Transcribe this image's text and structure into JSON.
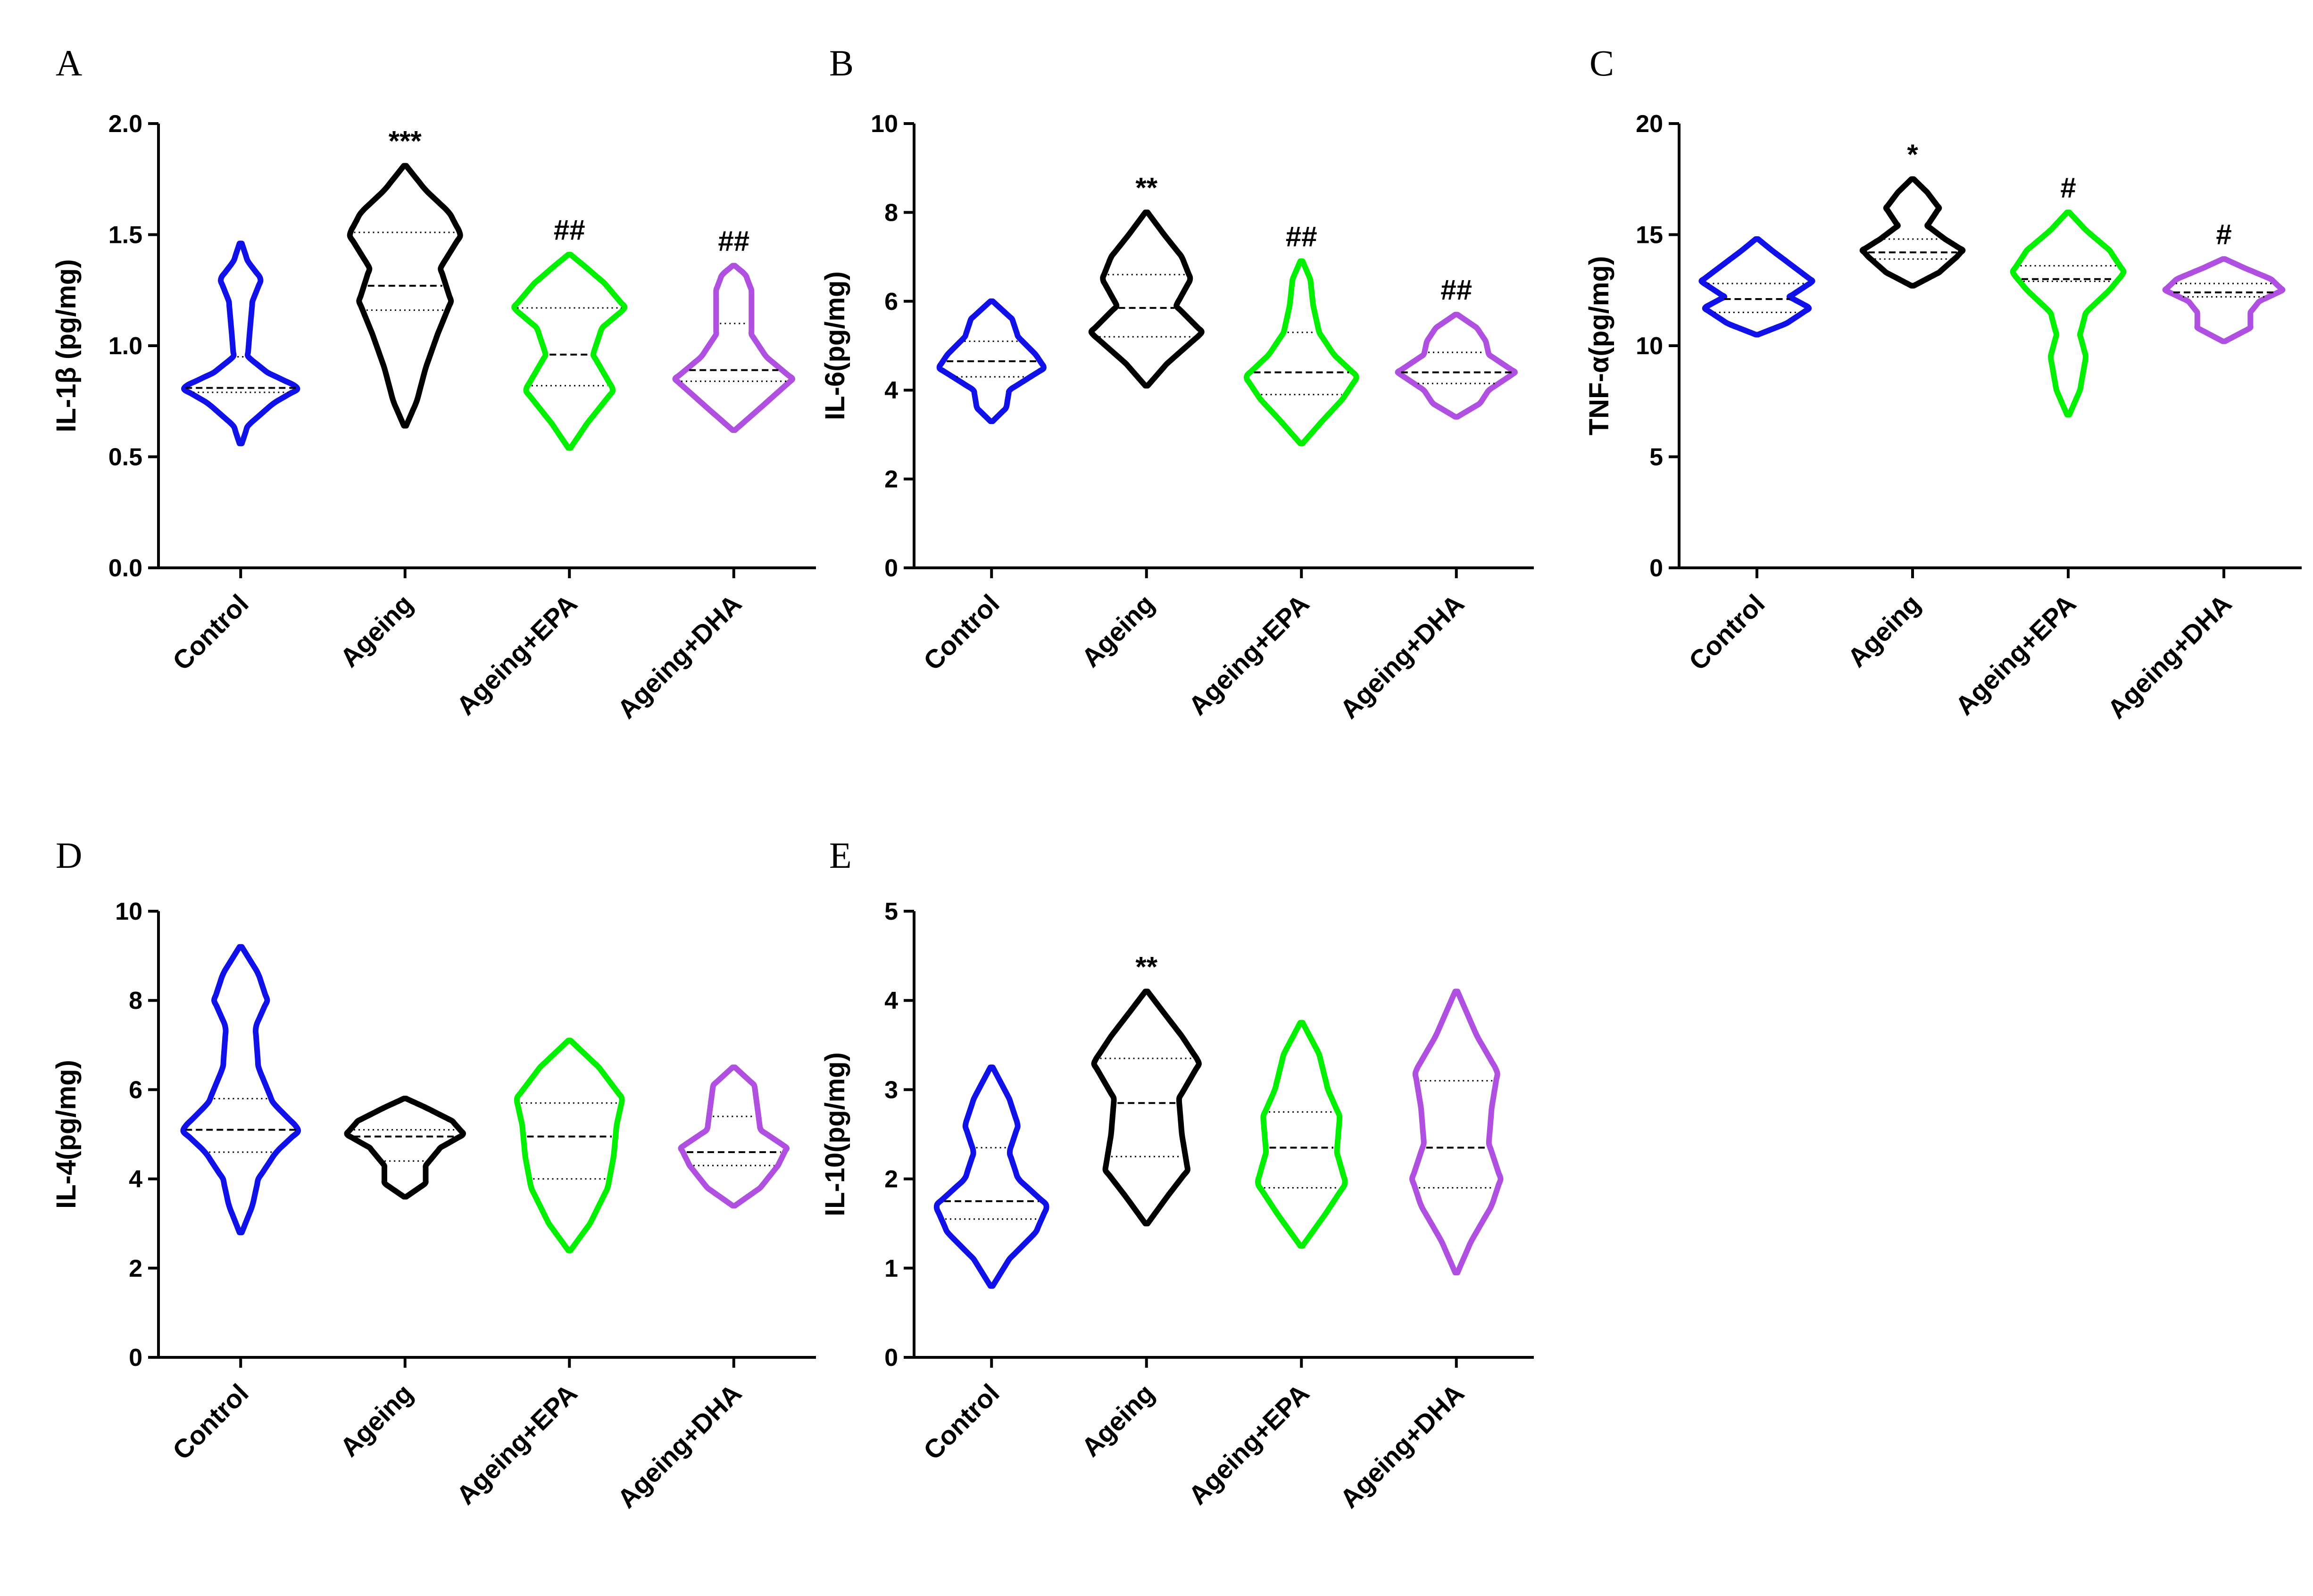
{
  "chart_data": [
    {
      "panel": "A",
      "type": "violin",
      "ylabel": "IL-1β (pg/mg)",
      "ylim": [
        0,
        2.0
      ],
      "yticks": [
        0.0,
        0.5,
        1.0,
        1.5,
        2.0
      ],
      "ytick_labels": [
        "0.0",
        "0.5",
        "1.0",
        "1.5",
        "2.0"
      ],
      "categories": [
        "Control",
        "Ageing",
        "Ageing+EPA",
        "Ageing+DHA"
      ],
      "colors": [
        "#1010E8",
        "#000000",
        "#00F000",
        "#B050E0"
      ],
      "significance": [
        "",
        "***",
        "##",
        "##"
      ],
      "violins": [
        {
          "min": 0.56,
          "max": 1.46,
          "median": 0.81,
          "q1": 0.79,
          "q3": 0.95,
          "density": [
            [
              0.56,
              0.02
            ],
            [
              0.64,
              0.12
            ],
            [
              0.74,
              0.55
            ],
            [
              0.81,
              1.0
            ],
            [
              0.88,
              0.45
            ],
            [
              0.95,
              0.12
            ],
            [
              1.05,
              0.15
            ],
            [
              1.2,
              0.2
            ],
            [
              1.3,
              0.35
            ],
            [
              1.38,
              0.12
            ],
            [
              1.46,
              0.02
            ]
          ]
        },
        {
          "min": 0.64,
          "max": 1.81,
          "median": 1.27,
          "q1": 1.16,
          "q3": 1.51,
          "density": [
            [
              0.64,
              0.02
            ],
            [
              0.75,
              0.2
            ],
            [
              0.9,
              0.35
            ],
            [
              1.05,
              0.55
            ],
            [
              1.2,
              0.78
            ],
            [
              1.35,
              0.6
            ],
            [
              1.5,
              0.95
            ],
            [
              1.6,
              0.75
            ],
            [
              1.7,
              0.35
            ],
            [
              1.81,
              0.02
            ]
          ]
        },
        {
          "min": 0.54,
          "max": 1.41,
          "median": 0.96,
          "q1": 0.82,
          "q3": 1.17,
          "density": [
            [
              0.54,
              0.02
            ],
            [
              0.65,
              0.3
            ],
            [
              0.8,
              0.75
            ],
            [
              0.96,
              0.4
            ],
            [
              1.08,
              0.55
            ],
            [
              1.17,
              0.95
            ],
            [
              1.28,
              0.6
            ],
            [
              1.36,
              0.25
            ],
            [
              1.41,
              0.02
            ]
          ]
        },
        {
          "min": 0.62,
          "max": 1.36,
          "median": 0.89,
          "q1": 0.84,
          "q3": 1.1,
          "density": [
            [
              0.62,
              0.02
            ],
            [
              0.72,
              0.45
            ],
            [
              0.85,
              1.0
            ],
            [
              0.95,
              0.55
            ],
            [
              1.05,
              0.3
            ],
            [
              1.15,
              0.3
            ],
            [
              1.25,
              0.3
            ],
            [
              1.32,
              0.2
            ],
            [
              1.36,
              0.02
            ]
          ]
        }
      ]
    },
    {
      "panel": "B",
      "type": "violin",
      "ylabel": "IL-6(pg/mg)",
      "ylim": [
        0,
        10
      ],
      "yticks": [
        0,
        2,
        4,
        6,
        8,
        10
      ],
      "ytick_labels": [
        "0",
        "2",
        "4",
        "6",
        "8",
        "10"
      ],
      "categories": [
        "Control",
        "Ageing",
        "Ageing+EPA",
        "Ageing+DHA"
      ],
      "colors": [
        "#1010E8",
        "#000000",
        "#00F000",
        "#B050E0"
      ],
      "significance": [
        "",
        "**",
        "##",
        "##"
      ],
      "violins": [
        {
          "min": 3.3,
          "max": 6.0,
          "median": 4.65,
          "q1": 4.3,
          "q3": 5.1,
          "density": [
            [
              3.3,
              0.02
            ],
            [
              3.6,
              0.25
            ],
            [
              4.0,
              0.3
            ],
            [
              4.5,
              0.9
            ],
            [
              4.8,
              0.75
            ],
            [
              5.2,
              0.45
            ],
            [
              5.6,
              0.35
            ],
            [
              6.0,
              0.02
            ]
          ]
        },
        {
          "min": 4.1,
          "max": 8.0,
          "median": 5.85,
          "q1": 5.2,
          "q3": 6.6,
          "density": [
            [
              4.1,
              0.02
            ],
            [
              4.6,
              0.35
            ],
            [
              5.3,
              0.95
            ],
            [
              5.9,
              0.5
            ],
            [
              6.5,
              0.75
            ],
            [
              7.0,
              0.6
            ],
            [
              7.5,
              0.3
            ],
            [
              8.0,
              0.02
            ]
          ]
        },
        {
          "min": 2.8,
          "max": 6.9,
          "median": 4.4,
          "q1": 3.9,
          "q3": 5.3,
          "density": [
            [
              2.8,
              0.02
            ],
            [
              3.3,
              0.35
            ],
            [
              3.8,
              0.7
            ],
            [
              4.3,
              0.95
            ],
            [
              4.8,
              0.55
            ],
            [
              5.3,
              0.3
            ],
            [
              5.9,
              0.2
            ],
            [
              6.5,
              0.15
            ],
            [
              6.9,
              0.02
            ]
          ]
        },
        {
          "min": 3.4,
          "max": 5.7,
          "median": 4.4,
          "q1": 4.15,
          "q3": 4.85,
          "density": [
            [
              3.4,
              0.02
            ],
            [
              3.7,
              0.4
            ],
            [
              4.0,
              0.55
            ],
            [
              4.4,
              1.0
            ],
            [
              4.8,
              0.55
            ],
            [
              5.1,
              0.5
            ],
            [
              5.4,
              0.35
            ],
            [
              5.7,
              0.02
            ]
          ]
        }
      ]
    },
    {
      "panel": "C",
      "type": "violin",
      "ylabel": "TNF-α(pg/mg)",
      "ylim": [
        0,
        20
      ],
      "yticks": [
        0,
        5,
        10,
        15,
        20
      ],
      "ytick_labels": [
        "0",
        "5",
        "10",
        "15",
        "20"
      ],
      "categories": [
        "Control",
        "Ageing",
        "Ageing+EPA",
        "Ageing+DHA"
      ],
      "colors": [
        "#1010E8",
        "#000000",
        "#00F000",
        "#B050E0"
      ],
      "significance": [
        "",
        "*",
        "#",
        "#"
      ],
      "violins": [
        {
          "min": 10.5,
          "max": 14.8,
          "median": 12.1,
          "q1": 11.5,
          "q3": 12.8,
          "density": [
            [
              10.5,
              0.02
            ],
            [
              11.0,
              0.5
            ],
            [
              11.7,
              0.9
            ],
            [
              12.2,
              0.55
            ],
            [
              12.9,
              0.95
            ],
            [
              13.6,
              0.6
            ],
            [
              14.3,
              0.25
            ],
            [
              14.8,
              0.02
            ]
          ]
        },
        {
          "min": 12.7,
          "max": 17.5,
          "median": 14.2,
          "q1": 13.9,
          "q3": 14.8,
          "density": [
            [
              12.7,
              0.02
            ],
            [
              13.3,
              0.45
            ],
            [
              14.0,
              0.75
            ],
            [
              14.3,
              0.85
            ],
            [
              14.8,
              0.55
            ],
            [
              15.4,
              0.25
            ],
            [
              16.2,
              0.45
            ],
            [
              16.9,
              0.25
            ],
            [
              17.5,
              0.02
            ]
          ]
        },
        {
          "min": 6.9,
          "max": 16.0,
          "median": 13.0,
          "q1": 12.9,
          "q3": 13.6,
          "density": [
            [
              6.9,
              0.02
            ],
            [
              8.0,
              0.2
            ],
            [
              9.5,
              0.3
            ],
            [
              10.5,
              0.2
            ],
            [
              11.5,
              0.3
            ],
            [
              12.5,
              0.7
            ],
            [
              13.3,
              0.95
            ],
            [
              14.3,
              0.7
            ],
            [
              15.2,
              0.3
            ],
            [
              16.0,
              0.02
            ]
          ]
        },
        {
          "min": 10.2,
          "max": 13.9,
          "median": 12.4,
          "q1": 12.2,
          "q3": 12.8,
          "density": [
            [
              10.2,
              0.02
            ],
            [
              10.8,
              0.45
            ],
            [
              11.5,
              0.45
            ],
            [
              12.0,
              0.6
            ],
            [
              12.5,
              1.0
            ],
            [
              13.0,
              0.8
            ],
            [
              13.5,
              0.35
            ],
            [
              13.9,
              0.02
            ]
          ]
        }
      ]
    },
    {
      "panel": "D",
      "type": "violin",
      "ylabel": "IL-4(pg/mg)",
      "ylim": [
        0,
        10
      ],
      "yticks": [
        0,
        2,
        4,
        6,
        8,
        10
      ],
      "ytick_labels": [
        "0",
        "2",
        "4",
        "6",
        "8",
        "10"
      ],
      "categories": [
        "Control",
        "Ageing",
        "Ageing+EPA",
        "Ageing+DHA"
      ],
      "colors": [
        "#1010E8",
        "#000000",
        "#00F000",
        "#B050E0"
      ],
      "significance": [
        "",
        "",
        "",
        ""
      ],
      "violins": [
        {
          "min": 2.8,
          "max": 9.2,
          "median": 5.1,
          "q1": 4.6,
          "q3": 5.8,
          "density": [
            [
              2.8,
              0.02
            ],
            [
              3.4,
              0.2
            ],
            [
              4.0,
              0.3
            ],
            [
              4.6,
              0.6
            ],
            [
              5.1,
              1.0
            ],
            [
              5.7,
              0.55
            ],
            [
              6.5,
              0.3
            ],
            [
              7.4,
              0.25
            ],
            [
              8.0,
              0.45
            ],
            [
              8.6,
              0.3
            ],
            [
              9.2,
              0.02
            ]
          ]
        },
        {
          "min": 3.6,
          "max": 5.8,
          "median": 4.95,
          "q1": 4.4,
          "q3": 5.1,
          "density": [
            [
              3.6,
              0.02
            ],
            [
              3.9,
              0.35
            ],
            [
              4.3,
              0.35
            ],
            [
              4.7,
              0.6
            ],
            [
              5.0,
              1.0
            ],
            [
              5.3,
              0.8
            ],
            [
              5.6,
              0.35
            ],
            [
              5.8,
              0.02
            ]
          ]
        },
        {
          "min": 2.4,
          "max": 7.1,
          "median": 4.95,
          "q1": 4.0,
          "q3": 5.7,
          "density": [
            [
              2.4,
              0.02
            ],
            [
              3.0,
              0.35
            ],
            [
              3.8,
              0.65
            ],
            [
              4.5,
              0.75
            ],
            [
              5.2,
              0.8
            ],
            [
              5.8,
              0.9
            ],
            [
              6.5,
              0.5
            ],
            [
              7.1,
              0.02
            ]
          ]
        },
        {
          "min": 3.4,
          "max": 6.5,
          "median": 4.6,
          "q1": 4.3,
          "q3": 5.4,
          "density": [
            [
              3.4,
              0.02
            ],
            [
              3.8,
              0.45
            ],
            [
              4.3,
              0.75
            ],
            [
              4.7,
              0.9
            ],
            [
              5.1,
              0.45
            ],
            [
              5.6,
              0.4
            ],
            [
              6.1,
              0.35
            ],
            [
              6.5,
              0.02
            ]
          ]
        }
      ]
    },
    {
      "panel": "E",
      "type": "violin",
      "ylabel": "IL-10(pg/mg)",
      "ylim": [
        0,
        5
      ],
      "yticks": [
        0,
        1,
        2,
        3,
        4,
        5
      ],
      "ytick_labels": [
        "0",
        "1",
        "2",
        "3",
        "4",
        "5"
      ],
      "categories": [
        "Control",
        "Ageing",
        "Ageing+EPA",
        "Ageing+DHA"
      ],
      "colors": [
        "#1010E8",
        "#000000",
        "#00F000",
        "#B050E0"
      ],
      "significance": [
        "",
        "**",
        "",
        ""
      ],
      "violins": [
        {
          "min": 0.8,
          "max": 3.25,
          "median": 1.75,
          "q1": 1.55,
          "q3": 2.35,
          "density": [
            [
              0.8,
              0.02
            ],
            [
              1.1,
              0.3
            ],
            [
              1.4,
              0.75
            ],
            [
              1.7,
              0.95
            ],
            [
              2.0,
              0.45
            ],
            [
              2.3,
              0.3
            ],
            [
              2.6,
              0.45
            ],
            [
              2.9,
              0.3
            ],
            [
              3.25,
              0.02
            ]
          ]
        },
        {
          "min": 1.5,
          "max": 4.1,
          "median": 2.85,
          "q1": 2.25,
          "q3": 3.35,
          "density": [
            [
              1.5,
              0.02
            ],
            [
              1.8,
              0.35
            ],
            [
              2.1,
              0.7
            ],
            [
              2.5,
              0.6
            ],
            [
              2.9,
              0.55
            ],
            [
              3.3,
              0.9
            ],
            [
              3.6,
              0.6
            ],
            [
              3.9,
              0.25
            ],
            [
              4.1,
              0.02
            ]
          ]
        },
        {
          "min": 1.25,
          "max": 3.75,
          "median": 2.35,
          "q1": 1.9,
          "q3": 2.75,
          "density": [
            [
              1.25,
              0.02
            ],
            [
              1.6,
              0.4
            ],
            [
              1.95,
              0.75
            ],
            [
              2.3,
              0.6
            ],
            [
              2.7,
              0.65
            ],
            [
              3.0,
              0.45
            ],
            [
              3.4,
              0.3
            ],
            [
              3.75,
              0.02
            ]
          ]
        },
        {
          "min": 0.95,
          "max": 4.1,
          "median": 2.35,
          "q1": 1.9,
          "q3": 3.1,
          "density": [
            [
              0.95,
              0.02
            ],
            [
              1.3,
              0.25
            ],
            [
              1.7,
              0.6
            ],
            [
              2.0,
              0.75
            ],
            [
              2.4,
              0.55
            ],
            [
              2.8,
              0.6
            ],
            [
              3.2,
              0.7
            ],
            [
              3.6,
              0.35
            ],
            [
              4.1,
              0.02
            ]
          ]
        }
      ]
    }
  ]
}
